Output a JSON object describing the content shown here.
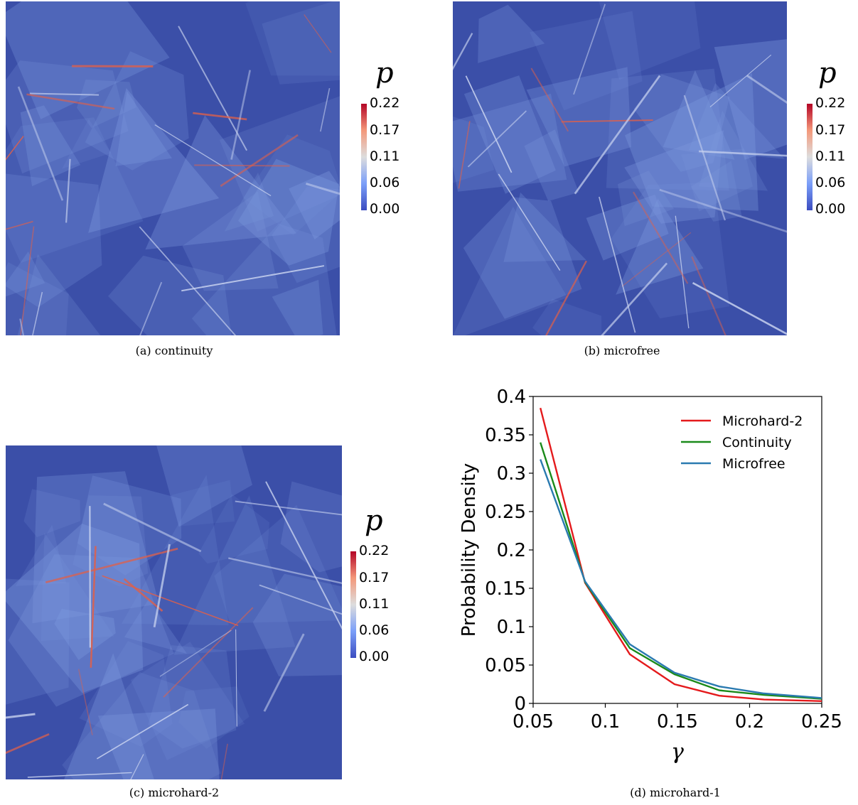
{
  "colorbar": {
    "title": "p",
    "ticks": [
      "0.22",
      "0.17",
      "0.11",
      "0.06",
      "0.00"
    ],
    "colors": [
      "#b40426",
      "#f4987a",
      "#dddddd",
      "#7b9ff9",
      "#3b4cc0"
    ]
  },
  "captions": {
    "a": "(a) continuity",
    "b": "(b) microfree",
    "c": "(c) microhard-2",
    "d": "(d) microhard-1"
  },
  "field_colors": {
    "background": "#3b4fa8",
    "band": "#7f9be0",
    "hot": "#e0604a"
  },
  "chart_data": {
    "type": "line",
    "xlabel": "γ",
    "ylabel": "Probability Density",
    "xlim": [
      0.05,
      0.25
    ],
    "ylim": [
      0,
      0.4
    ],
    "xticks": [
      "0.05",
      "0.1",
      "0.15",
      "0.2",
      "0.25"
    ],
    "yticks": [
      "0",
      "0.05",
      "0.1",
      "0.15",
      "0.2",
      "0.25",
      "0.3",
      "0.35",
      "0.4"
    ],
    "x": [
      0.055,
      0.086,
      0.117,
      0.148,
      0.179,
      0.21,
      0.25
    ],
    "series": [
      {
        "name": "Microhard-2",
        "color": "#e41a1c",
        "values": [
          0.385,
          0.157,
          0.064,
          0.025,
          0.01,
          0.005,
          0.003
        ]
      },
      {
        "name": "Continuity",
        "color": "#1a8a1a",
        "values": [
          0.34,
          0.158,
          0.072,
          0.038,
          0.017,
          0.011,
          0.006
        ]
      },
      {
        "name": "Microfree",
        "color": "#2a7ab0",
        "values": [
          0.318,
          0.159,
          0.077,
          0.04,
          0.022,
          0.013,
          0.007
        ]
      }
    ],
    "legend_position": "top-right",
    "grid": false
  }
}
